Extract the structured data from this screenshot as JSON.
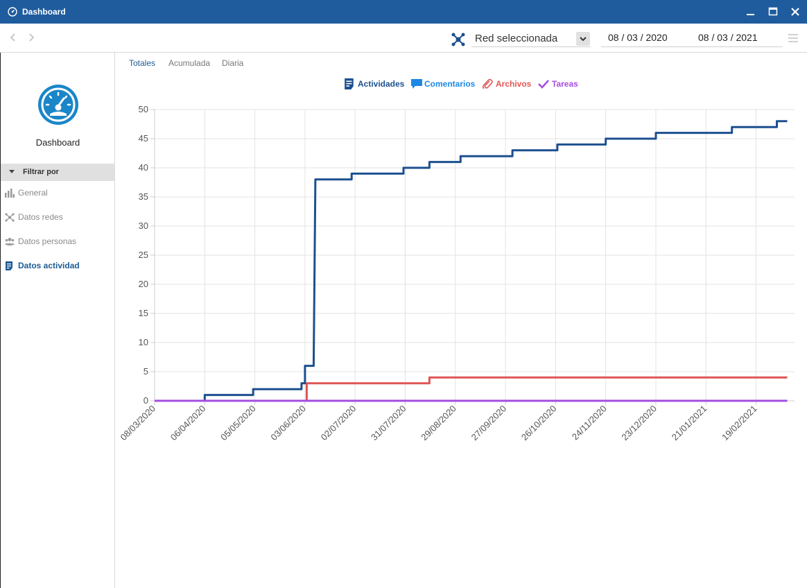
{
  "window": {
    "title": "Dashboard",
    "icon": "dashboard-gauge-icon",
    "title_bar_color": "#1f5c9e"
  },
  "toolbar": {
    "network_select": {
      "value": "Red seleccionada",
      "icon": "network-nodes-icon"
    },
    "date_start": "08 / 03 / 2020",
    "date_end": "08 / 03 / 2021"
  },
  "sidebar": {
    "logo_label": "Dashboard",
    "filter_header": "Filtrar por",
    "items": [
      {
        "label": "General",
        "icon": "bar-chart-icon",
        "active": false
      },
      {
        "label": "Datos redes",
        "icon": "network-icon",
        "active": false
      },
      {
        "label": "Datos personas",
        "icon": "people-icon",
        "active": false
      },
      {
        "label": "Datos actividad",
        "icon": "activity-list-icon",
        "active": true
      }
    ]
  },
  "tabs": [
    {
      "label": "Totales",
      "active": true
    },
    {
      "label": "Acumulada",
      "active": false
    },
    {
      "label": "Diaria",
      "active": false
    }
  ],
  "legend": [
    {
      "label": "Actividades",
      "color": "#1c4f8f",
      "icon": "activity-list-icon"
    },
    {
      "label": "Comentarios",
      "color": "#1e88e5",
      "icon": "comment-icon"
    },
    {
      "label": "Archivos",
      "color": "#e05555",
      "icon": "paperclip-icon"
    },
    {
      "label": "Tareas",
      "color": "#a64de0",
      "icon": "checkmark-icon"
    }
  ],
  "chart_data": {
    "type": "line",
    "step": true,
    "grid": true,
    "x_range": [
      "2020-03-08",
      "2021-03-08"
    ],
    "ylim": [
      0,
      50
    ],
    "y_ticks": [
      0,
      5,
      10,
      15,
      20,
      25,
      30,
      35,
      40,
      45,
      50
    ],
    "x_tick_labels": [
      "08/03/2020",
      "06/04/2020",
      "05/05/2020",
      "03/06/2020",
      "02/07/2020",
      "31/07/2020",
      "29/08/2020",
      "27/09/2020",
      "26/10/2020",
      "24/11/2020",
      "23/12/2020",
      "21/01/2021",
      "19/02/2021"
    ],
    "series": [
      {
        "name": "Actividades",
        "color": "#1c4f8f",
        "points": [
          [
            "2020-03-08",
            0
          ],
          [
            "2020-04-06",
            0
          ],
          [
            "2020-04-06",
            1
          ],
          [
            "2020-05-04",
            1
          ],
          [
            "2020-05-04",
            2
          ],
          [
            "2020-06-01",
            2
          ],
          [
            "2020-06-01",
            3
          ],
          [
            "2020-06-03",
            3
          ],
          [
            "2020-06-03",
            6
          ],
          [
            "2020-06-08",
            6
          ],
          [
            "2020-06-09",
            38
          ],
          [
            "2020-06-30",
            38
          ],
          [
            "2020-06-30",
            39
          ],
          [
            "2020-07-30",
            39
          ],
          [
            "2020-07-30",
            40
          ],
          [
            "2020-08-14",
            40
          ],
          [
            "2020-08-14",
            41
          ],
          [
            "2020-09-01",
            41
          ],
          [
            "2020-09-01",
            42
          ],
          [
            "2020-10-01",
            42
          ],
          [
            "2020-10-01",
            43
          ],
          [
            "2020-10-27",
            43
          ],
          [
            "2020-10-27",
            44
          ],
          [
            "2020-11-24",
            44
          ],
          [
            "2020-11-24",
            45
          ],
          [
            "2020-12-23",
            45
          ],
          [
            "2020-12-23",
            46
          ],
          [
            "2021-02-05",
            46
          ],
          [
            "2021-02-05",
            47
          ],
          [
            "2021-03-03",
            47
          ],
          [
            "2021-03-03",
            48
          ],
          [
            "2021-03-09",
            48
          ]
        ]
      },
      {
        "name": "Comentarios",
        "color": "#1e88e5",
        "points": [
          [
            "2020-03-08",
            0
          ],
          [
            "2021-03-09",
            0
          ]
        ]
      },
      {
        "name": "Archivos",
        "color": "#e05555",
        "points": [
          [
            "2020-03-08",
            0
          ],
          [
            "2020-06-04",
            0
          ],
          [
            "2020-06-04",
            3
          ],
          [
            "2020-08-14",
            3
          ],
          [
            "2020-08-14",
            4
          ],
          [
            "2021-03-09",
            4
          ]
        ]
      },
      {
        "name": "Tareas",
        "color": "#a64de0",
        "points": [
          [
            "2020-03-08",
            0
          ],
          [
            "2021-03-09",
            0
          ]
        ]
      }
    ]
  }
}
